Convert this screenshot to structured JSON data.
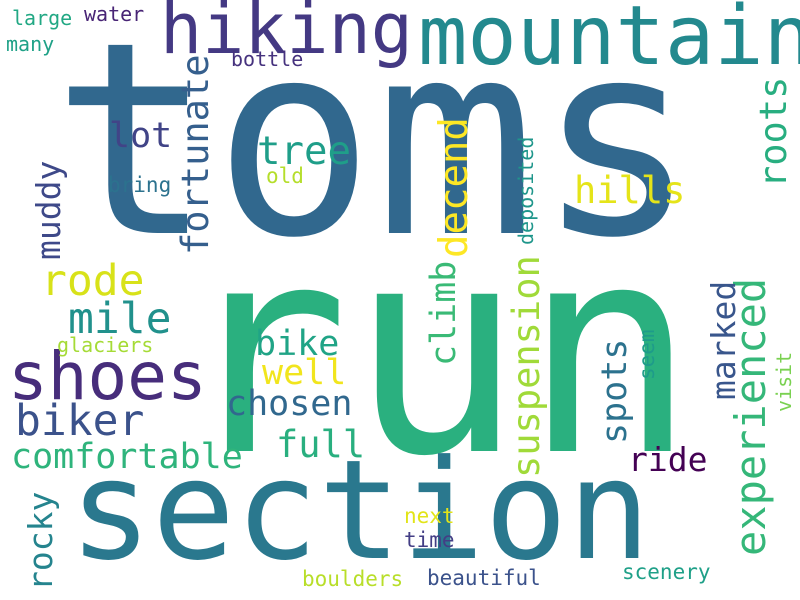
{
  "words": [
    {
      "id": "toms",
      "text": "toms",
      "color": "#31688e"
    },
    {
      "id": "run",
      "text": "run",
      "color": "#2ab07f"
    },
    {
      "id": "section",
      "text": "section",
      "color": "#2a788e"
    },
    {
      "id": "mountain",
      "text": "mountain",
      "color": "#23898e"
    },
    {
      "id": "hiking",
      "text": "hiking",
      "color": "#443983"
    },
    {
      "id": "shoes",
      "text": "shoes",
      "color": "#472d7b"
    },
    {
      "id": "biker",
      "text": "biker",
      "color": "#3b528b"
    },
    {
      "id": "comfortable",
      "text": "comfortable",
      "color": "#2fb47c"
    },
    {
      "id": "experienced",
      "text": "experienced",
      "color": "#35b779"
    },
    {
      "id": "mile",
      "text": "mile",
      "color": "#21918c"
    },
    {
      "id": "rode",
      "text": "rode",
      "color": "#d8e219"
    },
    {
      "id": "lot",
      "text": "lot",
      "color": "#414487"
    },
    {
      "id": "tree",
      "text": "tree",
      "color": "#1f9e89"
    },
    {
      "id": "fortunate",
      "text": "fortunate",
      "color": "#355f8d"
    },
    {
      "id": "muddy",
      "text": "muddy",
      "color": "#3e4989"
    },
    {
      "id": "decend",
      "text": "decend",
      "color": "#fde725"
    },
    {
      "id": "hills",
      "text": "hills",
      "color": "#e5e419"
    },
    {
      "id": "roots",
      "text": "roots",
      "color": "#28ae80"
    },
    {
      "id": "suspension",
      "text": "suspension",
      "color": "#a0da39"
    },
    {
      "id": "climb",
      "text": "climb",
      "color": "#3aba76"
    },
    {
      "id": "chosen",
      "text": "chosen",
      "color": "#31688e"
    },
    {
      "id": "bike",
      "text": "bike",
      "color": "#20a486"
    },
    {
      "id": "well",
      "text": "well",
      "color": "#f1e51d"
    },
    {
      "id": "full",
      "text": "full",
      "color": "#29af7f"
    },
    {
      "id": "spots",
      "text": "spots",
      "color": "#2c728e"
    },
    {
      "id": "marked",
      "text": "marked",
      "color": "#39568c"
    },
    {
      "id": "ride",
      "text": "ride",
      "color": "#440154"
    },
    {
      "id": "rocky",
      "text": "rocky",
      "color": "#25848e"
    },
    {
      "id": "water",
      "text": "water",
      "color": "#482475"
    },
    {
      "id": "large",
      "text": "large",
      "color": "#22a884"
    },
    {
      "id": "many",
      "text": "many",
      "color": "#1fa187"
    },
    {
      "id": "bottle",
      "text": "bottle",
      "color": "#46327e"
    },
    {
      "id": "bring",
      "text": "bring",
      "color": "#2c728e"
    },
    {
      "id": "old",
      "text": "old",
      "color": "#b5de2b"
    },
    {
      "id": "deposited",
      "text": "deposited",
      "color": "#1f968b"
    },
    {
      "id": "glaciers",
      "text": "glaciers",
      "color": "#a5db36"
    },
    {
      "id": "seem",
      "text": "seem",
      "color": "#1e9b8a"
    },
    {
      "id": "visit",
      "text": "visit",
      "color": "#7ad151"
    },
    {
      "id": "next",
      "text": "next",
      "color": "#e2e418"
    },
    {
      "id": "time",
      "text": "time",
      "color": "#433e85"
    },
    {
      "id": "boulders",
      "text": "boulders",
      "color": "#b8de29"
    },
    {
      "id": "beautiful",
      "text": "beautiful",
      "color": "#3b528b"
    },
    {
      "id": "scenery",
      "text": "scenery",
      "color": "#1fa088"
    }
  ]
}
